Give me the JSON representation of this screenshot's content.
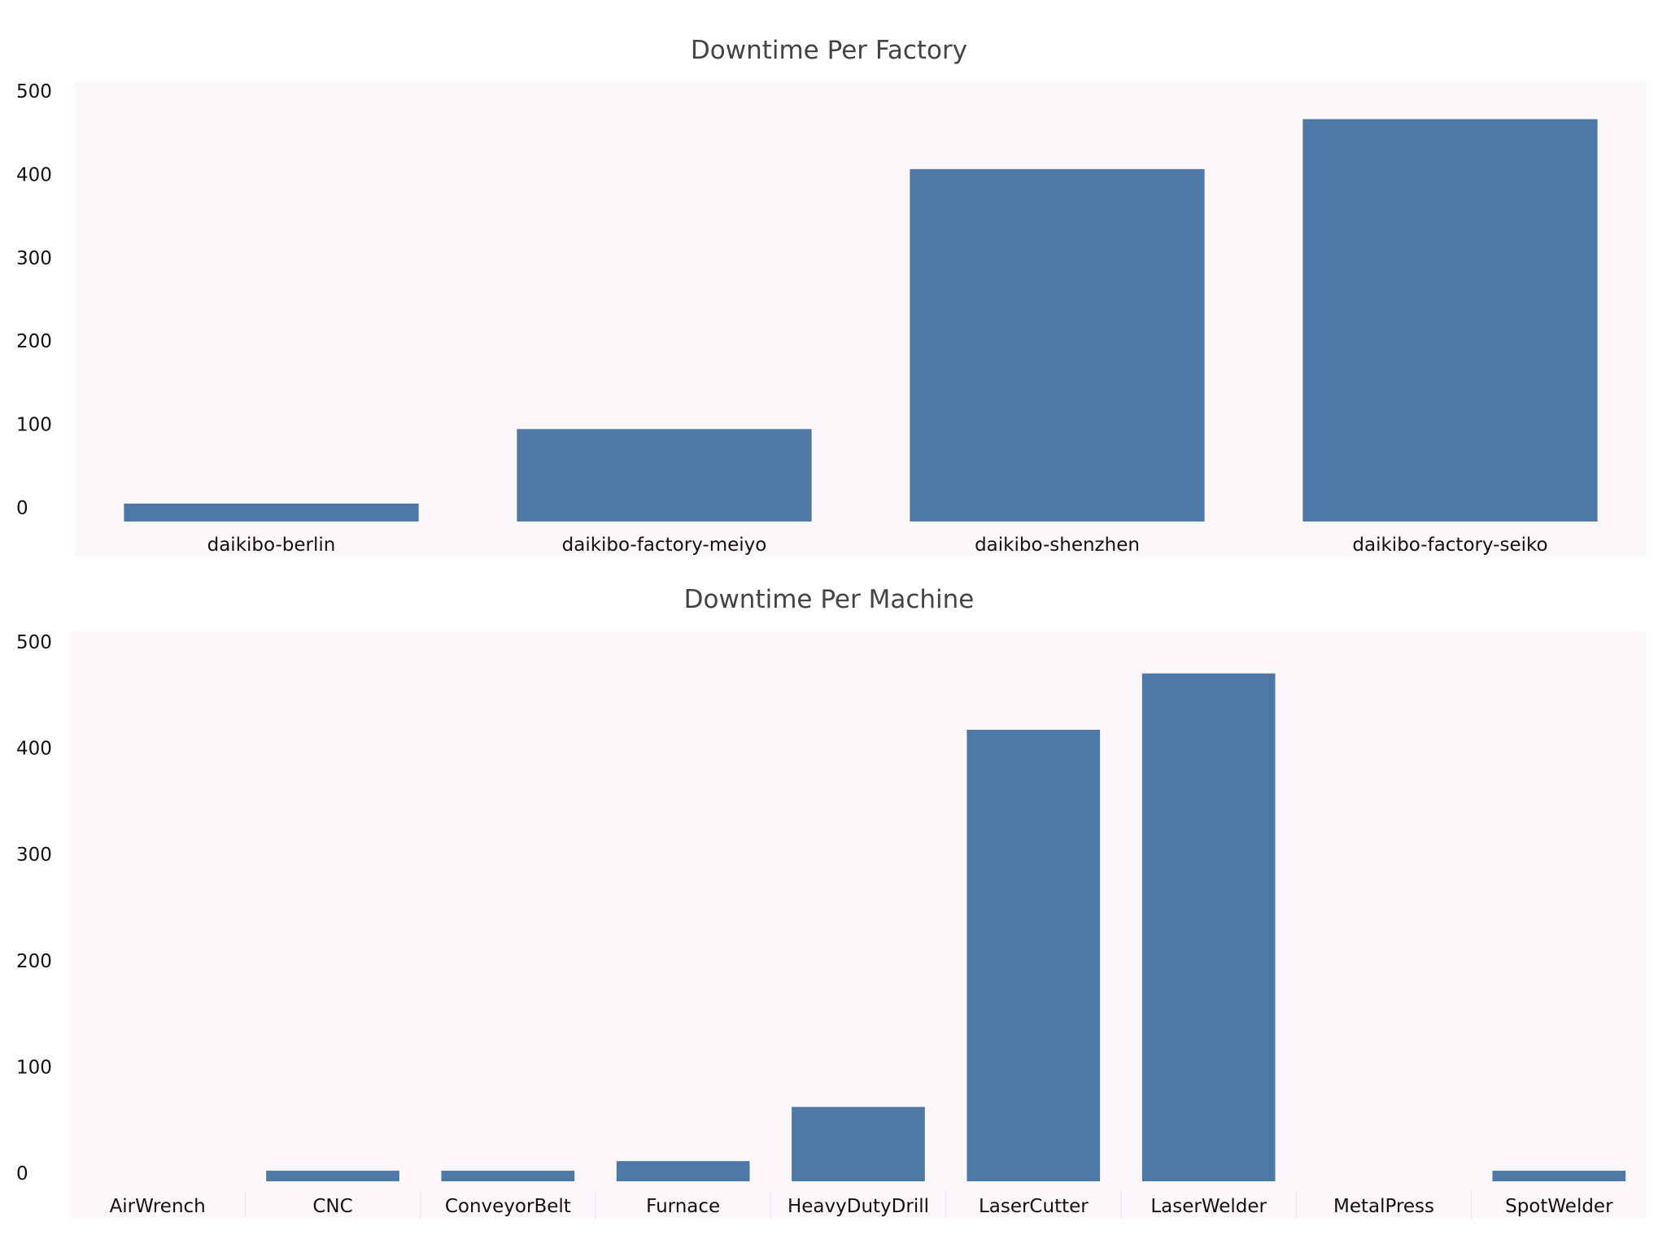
{
  "chart_data": [
    {
      "type": "bar",
      "title": "Downtime Per Factory",
      "categories": [
        "daikibo-berlin",
        "daikibo-factory-meiyo",
        "daikibo-shenzhen",
        "daikibo-factory-seiko"
      ],
      "values": [
        20,
        110,
        422,
        482
      ],
      "xlabel": "",
      "ylabel": "",
      "yticks": [
        "0",
        "100",
        "200",
        "300",
        "400",
        "500"
      ],
      "ylim": [
        0,
        500
      ],
      "grid": false,
      "colors": {
        "bar": "#4e79a7",
        "plot_background": "#fcf7fb"
      }
    },
    {
      "type": "bar",
      "title": "Downtime Per Machine",
      "categories": [
        "AirWrench",
        "CNC",
        "ConveyorBelt",
        "Furnace",
        "HeavyDutyDrill",
        "LaserCutter",
        "LaserWelder",
        "MetalPress",
        "SpotWelder"
      ],
      "values": [
        0,
        10,
        10,
        19,
        70,
        425,
        478,
        0,
        10
      ],
      "xlabel": "",
      "ylabel": "",
      "yticks": [
        "0",
        "100",
        "200",
        "300",
        "400",
        "500"
      ],
      "ylim": [
        0,
        500
      ],
      "grid": false,
      "colors": {
        "bar": "#4e79a7",
        "plot_background": "#fcf7fb"
      }
    }
  ]
}
